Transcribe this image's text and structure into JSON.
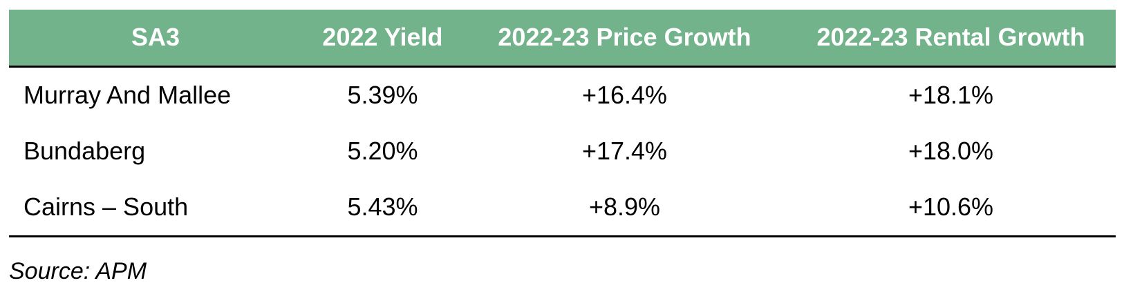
{
  "table": {
    "headers": [
      "SA3",
      "2022 Yield",
      "2022-23 Price Growth",
      "2022-23 Rental Growth"
    ],
    "rows": [
      [
        "Murray And Mallee",
        "5.39%",
        "+16.4%",
        "+18.1%"
      ],
      [
        "Bundaberg",
        "5.20%",
        "+17.4%",
        "+18.0%"
      ],
      [
        "Cairns – South",
        "5.43%",
        "+8.9%",
        "+10.6%"
      ]
    ]
  },
  "source": "Source: APM",
  "colors": {
    "header_background": "#72b38b",
    "header_text": "#ffffff",
    "rule": "#000000"
  }
}
